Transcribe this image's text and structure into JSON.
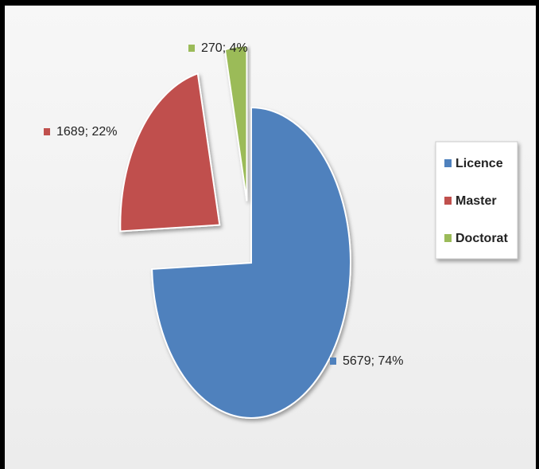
{
  "chart_data": {
    "type": "pie",
    "categories": [
      "Licence",
      "Master",
      "Doctorat"
    ],
    "values": [
      5679,
      1689,
      270
    ],
    "value_labels": [
      "5679; 74%",
      "1689; 22%",
      "270; 4%"
    ],
    "colors": [
      "#4f81bd",
      "#c0504d",
      "#9bbb59"
    ],
    "legend": "right"
  }
}
